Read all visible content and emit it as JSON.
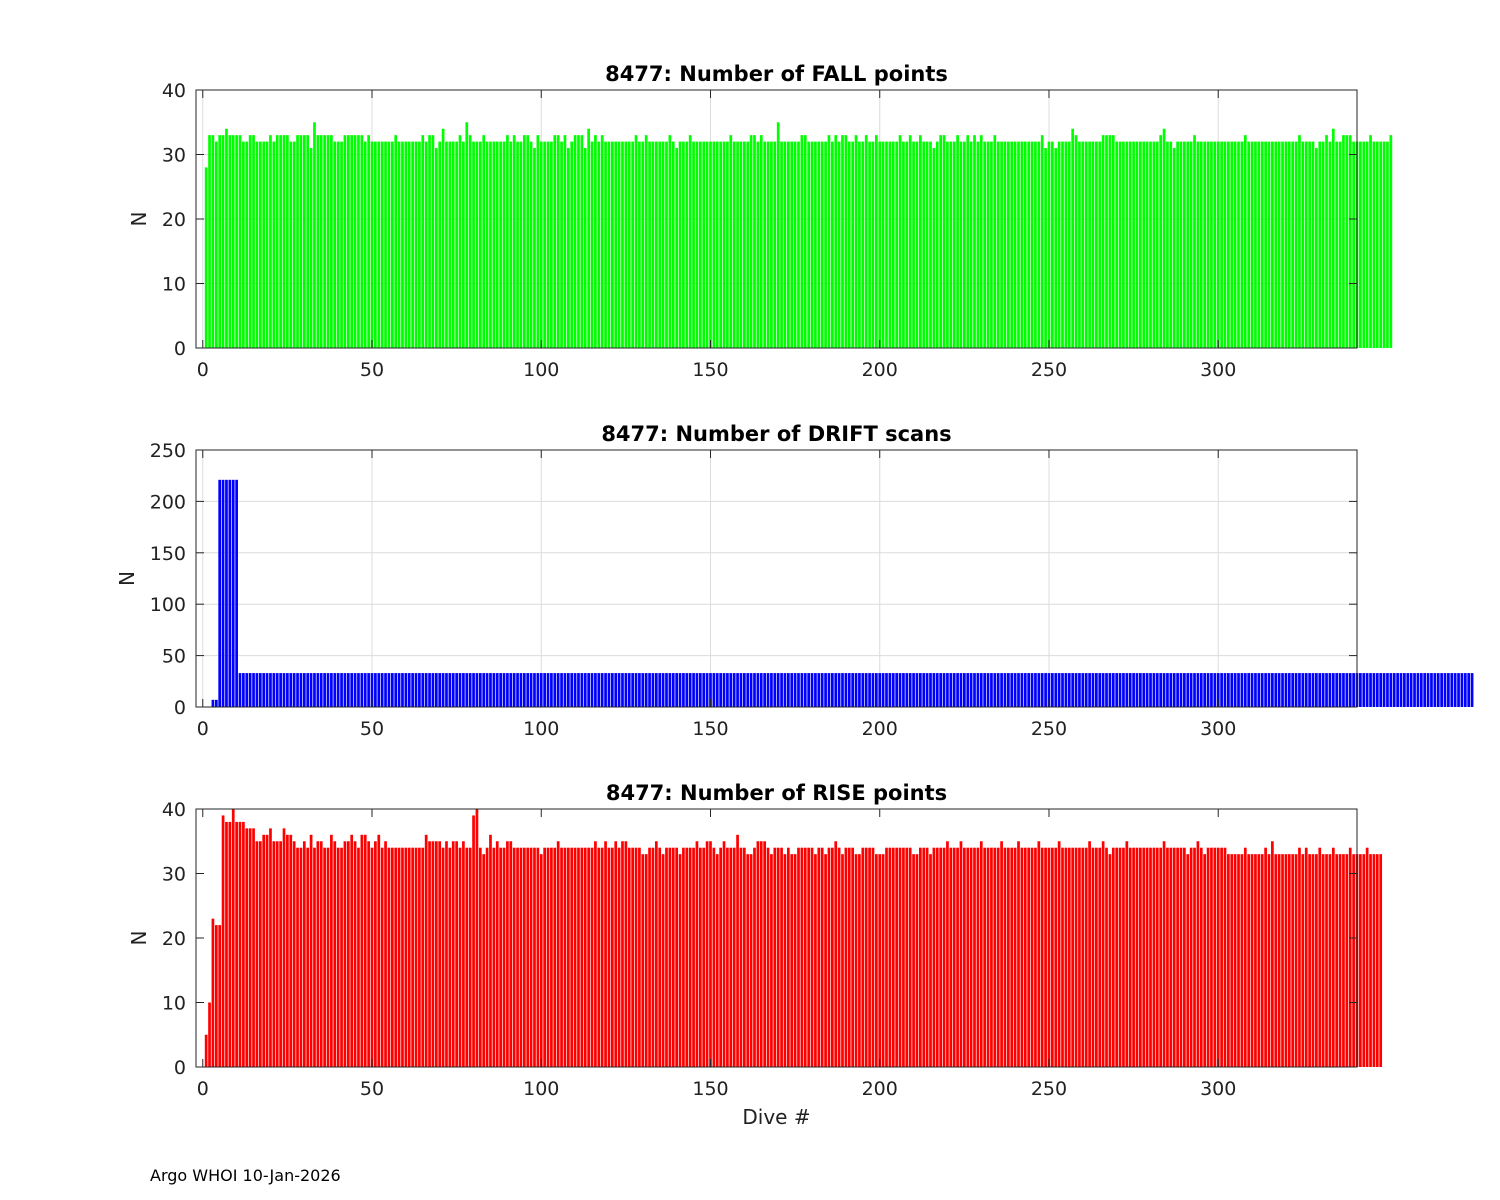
{
  "figure": {
    "footer": "Argo WHOI 10-Jan-2026"
  },
  "chart_data": [
    {
      "type": "bar",
      "title": "8477: Number of FALL points",
      "xlabel": "",
      "ylabel": "N",
      "xlim": [
        -2,
        341
      ],
      "ylim": [
        0,
        40
      ],
      "xticks": [
        0,
        50,
        100,
        150,
        200,
        250,
        300
      ],
      "yticks": [
        0,
        10,
        20,
        30,
        40
      ],
      "color": "#00ff00",
      "grid": true,
      "series": [
        {
          "name": "FALL",
          "x_start": 1,
          "values": [
            28,
            33,
            33,
            32,
            33,
            33,
            34,
            33,
            33,
            33,
            33,
            32,
            32,
            33,
            33,
            32,
            32,
            32,
            32,
            33,
            32,
            33,
            33,
            33,
            33,
            32,
            32,
            33,
            33,
            33,
            33,
            31,
            35,
            33,
            33,
            33,
            33,
            33,
            32,
            32,
            32,
            33,
            33,
            33,
            33,
            33,
            33,
            32,
            33,
            32,
            32,
            32,
            32,
            32,
            32,
            32,
            33,
            32,
            32,
            32,
            32,
            32,
            32,
            32,
            33,
            32,
            33,
            33,
            31,
            32,
            34,
            32,
            32,
            32,
            32,
            33,
            32,
            35,
            33,
            32,
            32,
            32,
            33,
            32,
            32,
            32,
            32,
            32,
            32,
            33,
            32,
            33,
            32,
            32,
            33,
            33,
            32,
            31,
            33,
            32,
            32,
            32,
            32,
            33,
            33,
            32,
            33,
            31,
            32,
            33,
            33,
            33,
            31,
            34,
            32,
            33,
            32,
            33,
            32,
            32,
            32,
            32,
            32,
            32,
            32,
            32,
            32,
            33,
            32,
            32,
            33,
            32,
            32,
            32,
            32,
            32,
            32,
            33,
            32,
            31,
            32,
            32,
            32,
            33,
            32,
            32,
            32,
            32,
            32,
            32,
            32,
            32,
            32,
            32,
            32,
            33,
            32,
            32,
            32,
            32,
            32,
            33,
            33,
            32,
            33,
            32,
            32,
            32,
            32,
            35,
            32,
            32,
            32,
            32,
            32,
            32,
            33,
            33,
            32,
            32,
            32,
            32,
            32,
            32,
            33,
            32,
            33,
            32,
            33,
            33,
            32,
            32,
            33,
            32,
            32,
            33,
            32,
            32,
            33,
            32,
            32,
            32,
            32,
            32,
            32,
            33,
            32,
            32,
            33,
            32,
            32,
            33,
            32,
            32,
            32,
            31,
            32,
            33,
            33,
            32,
            32,
            32,
            33,
            32,
            32,
            33,
            32,
            33,
            32,
            33,
            32,
            32,
            32,
            33,
            32,
            32,
            32,
            32,
            32,
            32,
            32,
            32,
            32,
            32,
            32,
            32,
            32,
            33,
            31,
            32,
            32,
            31,
            32,
            32,
            32,
            32,
            34,
            33,
            32,
            32,
            32,
            32,
            32,
            32,
            32,
            33,
            33,
            33,
            33,
            32,
            32,
            32,
            32,
            32,
            32,
            32,
            32,
            32,
            32,
            32,
            32,
            32,
            33,
            34,
            32,
            32,
            31,
            32,
            32,
            32,
            32,
            32,
            33,
            32,
            32,
            32,
            32,
            32,
            32,
            32,
            32,
            32,
            32,
            32,
            32,
            32,
            32,
            33,
            32,
            32,
            32,
            32,
            32,
            32,
            32,
            32,
            32,
            32,
            32,
            32,
            32,
            32,
            32,
            33,
            32,
            32,
            32,
            32,
            31,
            32,
            32,
            33,
            32,
            34,
            32,
            32,
            33,
            33,
            33,
            32,
            32,
            32,
            32,
            32,
            33,
            32,
            32,
            32,
            32,
            32,
            33
          ]
        }
      ]
    },
    {
      "type": "bar",
      "title": "8477: Number of DRIFT scans",
      "xlabel": "",
      "ylabel": "N",
      "xlim": [
        -2,
        341
      ],
      "ylim": [
        0,
        250
      ],
      "xticks": [
        0,
        50,
        100,
        150,
        200,
        250,
        300
      ],
      "yticks": [
        0,
        50,
        100,
        150,
        200,
        250
      ],
      "color": "#0000ff",
      "grid": true,
      "series": [
        {
          "name": "DRIFT",
          "x_start": 1,
          "values": [
            0,
            0,
            7,
            7,
            221,
            221,
            221,
            221,
            221,
            221,
            33,
            33,
            33,
            33,
            33,
            33,
            33,
            33,
            33,
            33,
            33,
            33,
            33,
            33,
            33,
            33,
            33,
            33,
            33,
            33,
            33,
            33,
            33,
            33,
            33,
            33,
            33,
            33,
            33,
            33,
            33,
            33,
            33,
            33,
            33,
            33,
            33,
            33,
            33,
            33,
            33,
            33,
            33,
            33,
            33,
            33,
            33,
            33,
            33,
            33,
            33,
            33,
            33,
            33,
            33,
            33,
            33,
            33,
            33,
            33,
            33,
            33,
            33,
            33,
            33,
            33,
            33,
            33,
            33,
            33,
            33,
            33,
            33,
            33,
            33,
            33,
            33,
            33,
            33,
            33,
            33,
            33,
            33,
            33,
            33,
            33,
            33,
            33,
            33,
            33,
            33,
            33,
            33,
            33,
            33,
            33,
            33,
            33,
            33,
            33,
            33,
            33,
            33,
            33,
            33,
            33,
            33,
            33,
            33,
            33,
            33,
            33,
            33,
            33,
            33,
            33,
            33,
            33,
            33,
            33,
            33,
            33,
            33,
            33,
            33,
            33,
            33,
            33,
            33,
            33,
            33,
            33,
            33,
            33,
            33,
            33,
            33,
            33,
            33,
            33,
            33,
            33,
            33,
            33,
            33,
            33,
            33,
            33,
            33,
            33,
            33,
            33,
            33,
            33,
            33,
            33,
            33,
            33,
            33,
            33,
            33,
            33,
            33,
            33,
            33,
            33,
            33,
            33,
            33,
            33,
            33,
            33,
            33,
            33,
            33,
            33,
            33,
            33,
            33,
            33,
            33,
            33,
            33,
            33,
            33,
            33,
            33,
            33,
            33,
            33,
            33,
            33,
            33,
            33,
            33,
            33,
            33,
            33,
            33,
            33,
            33,
            33,
            33,
            33,
            33,
            33,
            33,
            33,
            33,
            33,
            33,
            33,
            33,
            33,
            33,
            33,
            33,
            33,
            33,
            33,
            33,
            33,
            33,
            33,
            33,
            33,
            33,
            33,
            33,
            33,
            33,
            33,
            33,
            33,
            33,
            33,
            33,
            33,
            33,
            33,
            33,
            33,
            33,
            33,
            33,
            33,
            33,
            33,
            33,
            33,
            33,
            33,
            33,
            33,
            33,
            33,
            33,
            33,
            33,
            33,
            33,
            33,
            33,
            33,
            33,
            33,
            33,
            33,
            33,
            33,
            33,
            33,
            33,
            33,
            33,
            33,
            33,
            33,
            33,
            33,
            33,
            33,
            33,
            33,
            33,
            33,
            33,
            33,
            33,
            33,
            33,
            33,
            33,
            33,
            33,
            33,
            33,
            33,
            33,
            33,
            33,
            33,
            33,
            33,
            33,
            33,
            33,
            33,
            33,
            33,
            33,
            33,
            33,
            33,
            33,
            33,
            33,
            33,
            33,
            33,
            33,
            33,
            33,
            33,
            33,
            33,
            33,
            33,
            33,
            33,
            33,
            33,
            33,
            33,
            33,
            33,
            33,
            33,
            33,
            33,
            33,
            33,
            33,
            33,
            33,
            33,
            33,
            33,
            33,
            33,
            33,
            33,
            33,
            33,
            33,
            33,
            33,
            33,
            33,
            33,
            33,
            33,
            33,
            33,
            33
          ]
        }
      ]
    },
    {
      "type": "bar",
      "title": "8477: Number of RISE points",
      "xlabel": "Dive #",
      "ylabel": "N",
      "xlim": [
        -2,
        341
      ],
      "ylim": [
        0,
        40
      ],
      "xticks": [
        0,
        50,
        100,
        150,
        200,
        250,
        300
      ],
      "yticks": [
        0,
        10,
        20,
        30,
        40
      ],
      "color": "#ff0000",
      "grid": false,
      "series": [
        {
          "name": "RISE",
          "x_start": 1,
          "values": [
            5,
            10,
            23,
            22,
            22,
            39,
            38,
            38,
            40,
            38,
            38,
            38,
            37,
            37,
            37,
            35,
            35,
            36,
            36,
            37,
            35,
            35,
            35,
            37,
            36,
            36,
            35,
            34,
            34,
            35,
            34,
            36,
            34,
            35,
            35,
            34,
            34,
            36,
            35,
            34,
            34,
            35,
            35,
            36,
            35,
            34,
            36,
            36,
            35,
            34,
            35,
            36,
            34,
            35,
            34,
            34,
            34,
            34,
            34,
            34,
            34,
            34,
            34,
            34,
            34,
            36,
            35,
            35,
            35,
            35,
            34,
            35,
            34,
            35,
            35,
            34,
            35,
            34,
            34,
            39,
            40,
            34,
            33,
            34,
            36,
            34,
            35,
            34,
            34,
            35,
            35,
            34,
            34,
            34,
            34,
            34,
            34,
            34,
            34,
            33,
            34,
            34,
            34,
            34,
            35,
            34,
            34,
            34,
            34,
            34,
            34,
            34,
            34,
            34,
            34,
            35,
            34,
            34,
            35,
            34,
            34,
            35,
            34,
            35,
            35,
            34,
            34,
            34,
            34,
            33,
            33,
            34,
            34,
            35,
            34,
            33,
            34,
            34,
            34,
            34,
            33,
            34,
            34,
            34,
            34,
            35,
            34,
            34,
            35,
            35,
            34,
            33,
            34,
            35,
            34,
            34,
            34,
            36,
            34,
            34,
            33,
            33,
            34,
            35,
            35,
            35,
            34,
            33,
            34,
            34,
            34,
            33,
            34,
            33,
            33,
            34,
            34,
            34,
            34,
            34,
            33,
            34,
            34,
            33,
            34,
            34,
            35,
            34,
            33,
            34,
            34,
            34,
            33,
            33,
            34,
            34,
            34,
            34,
            33,
            33,
            33,
            34,
            34,
            34,
            34,
            34,
            34,
            34,
            34,
            33,
            33,
            34,
            34,
            34,
            33,
            34,
            34,
            34,
            34,
            35,
            34,
            34,
            34,
            35,
            34,
            34,
            34,
            34,
            34,
            35,
            34,
            34,
            34,
            34,
            34,
            35,
            34,
            34,
            34,
            34,
            35,
            34,
            34,
            34,
            34,
            34,
            35,
            34,
            34,
            34,
            34,
            34,
            35,
            34,
            34,
            34,
            34,
            34,
            34,
            34,
            34,
            35,
            34,
            34,
            34,
            35,
            34,
            33,
            34,
            34,
            34,
            34,
            35,
            34,
            34,
            34,
            34,
            34,
            34,
            34,
            34,
            34,
            34,
            35,
            34,
            34,
            34,
            34,
            34,
            34,
            33,
            34,
            34,
            35,
            34,
            33,
            34,
            34,
            34,
            34,
            34,
            34,
            33,
            33,
            33,
            33,
            33,
            34,
            33,
            33,
            33,
            33,
            33,
            34,
            33,
            35,
            33,
            33,
            33,
            33,
            33,
            33,
            33,
            34,
            33,
            34,
            33,
            33,
            33,
            34,
            33,
            33,
            33,
            34,
            33,
            33,
            33,
            33,
            34,
            33,
            33,
            33,
            33,
            34,
            33,
            33,
            33,
            33
          ]
        }
      ]
    }
  ]
}
